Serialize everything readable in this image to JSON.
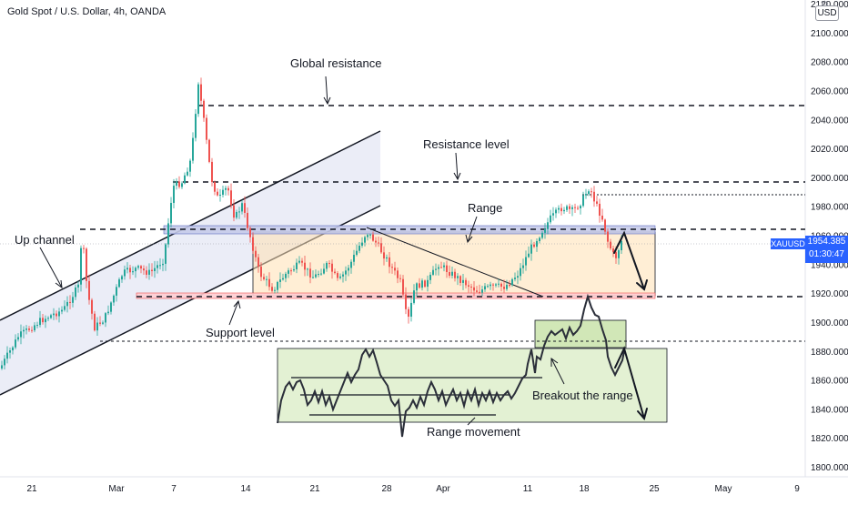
{
  "header": {
    "title": "Gold Spot / U.S. Dollar, 4h, OANDA"
  },
  "currency_badge": "USD",
  "settings_icon": "gear-icon",
  "price_axis": {
    "ticks": [
      "2120.000",
      "2100.000",
      "2080.000",
      "2060.000",
      "2040.000",
      "2020.000",
      "2000.000",
      "1980.000",
      "1960.000",
      "1940.000",
      "1920.000",
      "1900.000",
      "1880.000",
      "1860.000",
      "1840.000",
      "1820.000",
      "1800.000"
    ]
  },
  "time_axis": {
    "ticks": [
      "21",
      "Mar",
      "7",
      "14",
      "21",
      "28",
      "Apr",
      "11",
      "18",
      "25",
      "May",
      "9"
    ]
  },
  "last_price": {
    "symbol": "XAUUSD",
    "price": "1954.385",
    "countdown": "01:30:47"
  },
  "annotations": {
    "global_resistance": "Global resistance",
    "resistance_level": "Resistance level",
    "range": "Range",
    "up_channel": "Up channel",
    "support_level": "Support level",
    "breakout": "Breakout the range",
    "range_movement": "Range movement"
  },
  "chart_data": {
    "type": "candlestick",
    "instrument": "XAUUSD",
    "timeframe": "4h",
    "ylim": [
      1800,
      2120
    ],
    "x_ticks": [
      "21",
      "Mar",
      "7",
      "14",
      "21",
      "28",
      "Apr",
      "11",
      "18",
      "25",
      "May",
      "9"
    ],
    "levels": {
      "global_resistance": 2050,
      "resistance_level": 1997,
      "range_top": 1963,
      "range_bottom": 1918,
      "lower_dotted": 1887
    },
    "last_price": 1954.385,
    "colors": {
      "up": "#26a69a",
      "down": "#ef5350",
      "range_top": "#2962ff",
      "range_bottom": "#ef5350",
      "range_fill": "#ff9800",
      "channel": "#9fa8da",
      "breakout_box": "#8bc34a"
    }
  }
}
